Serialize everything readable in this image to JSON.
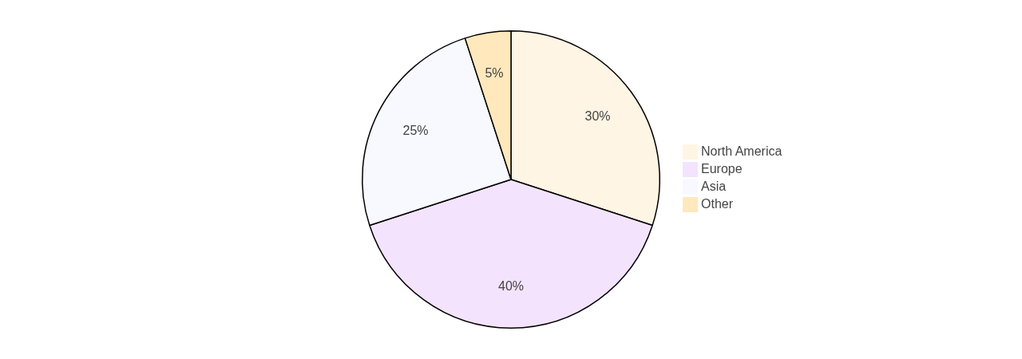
{
  "chart_data": {
    "type": "pie",
    "categories": [
      "North America",
      "Europe",
      "Asia",
      "Other"
    ],
    "values": [
      30,
      40,
      25,
      5
    ],
    "value_labels": [
      "30%",
      "40%",
      "25%",
      "5%"
    ],
    "colors": [
      "#fff5e4",
      "#f4e3fd",
      "#f8f9fe",
      "#ffe8bb"
    ],
    "data_labels": true,
    "legend": "right"
  }
}
